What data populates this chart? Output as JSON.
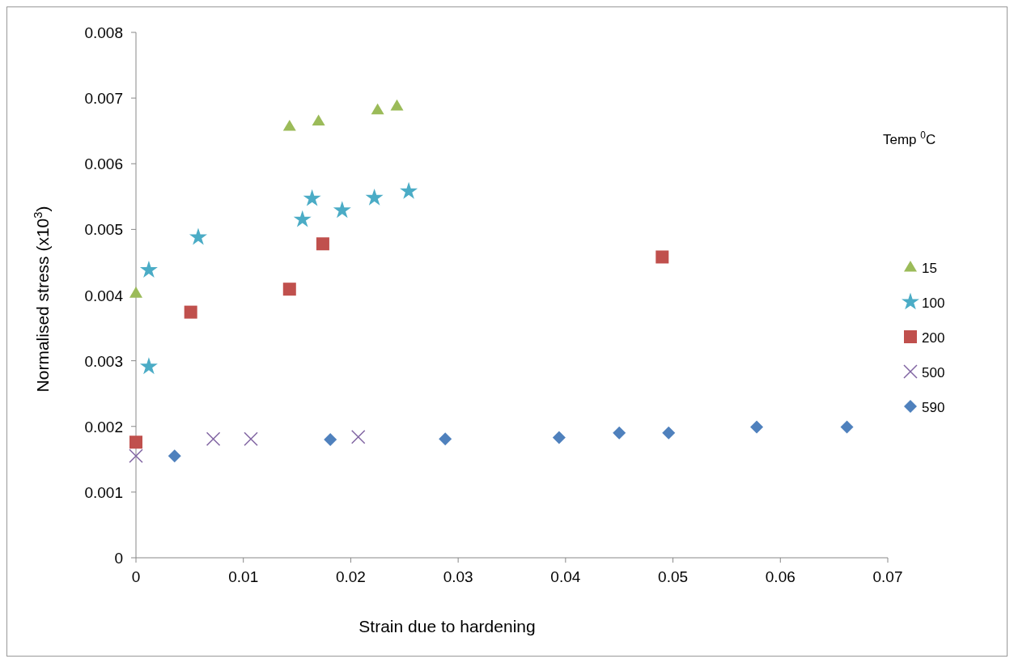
{
  "chart_data": {
    "type": "scatter",
    "xlabel": "Strain due to hardening",
    "ylabel": "Normalised stress (x10$^{3}$)",
    "legend_title": "Temp $^{0}$C",
    "legend": "right",
    "grid": false,
    "xlim": [
      0,
      0.07
    ],
    "xticks": [
      0,
      0.01,
      0.02,
      0.03,
      0.04,
      0.05,
      0.06,
      0.07
    ],
    "ylim": [
      0,
      0.008
    ],
    "yticks": [
      0,
      0.001,
      0.002,
      0.003,
      0.004,
      0.005,
      0.006,
      0.007,
      0.008
    ],
    "series": [
      {
        "name": "15",
        "color": "#9bbb59",
        "marker": "triangle",
        "x": [
          0,
          0.0143,
          0.017,
          0.0225,
          0.0243
        ],
        "values": [
          0.00403,
          0.00657,
          0.00665,
          0.00682,
          0.00688
        ]
      },
      {
        "name": "100",
        "color": "#4bacc6",
        "marker": "star",
        "x": [
          0.0012,
          0.0012,
          0.0058,
          0.0155,
          0.0164,
          0.0192,
          0.0222,
          0.0254
        ],
        "values": [
          0.00438,
          0.00291,
          0.00488,
          0.00515,
          0.00547,
          0.00529,
          0.00548,
          0.00558
        ]
      },
      {
        "name": "200",
        "color": "#c0504d",
        "marker": "square",
        "x": [
          0,
          0.0051,
          0.0143,
          0.0174,
          0.049
        ],
        "values": [
          0.00176,
          0.00374,
          0.00409,
          0.00478,
          0.00458
        ]
      },
      {
        "name": "500",
        "color": "#8064a2",
        "marker": "cross",
        "x": [
          0,
          0.0072,
          0.0107,
          0.0207
        ],
        "values": [
          0.00155,
          0.00181,
          0.00181,
          0.00184
        ]
      },
      {
        "name": "590",
        "color": "#4f81bd",
        "marker": "diamond",
        "x": [
          0.0036,
          0.0181,
          0.0288,
          0.0394,
          0.045,
          0.0496,
          0.0578,
          0.0662
        ],
        "values": [
          0.00155,
          0.0018,
          0.00181,
          0.00183,
          0.0019,
          0.0019,
          0.00199,
          0.00199
        ]
      }
    ]
  }
}
